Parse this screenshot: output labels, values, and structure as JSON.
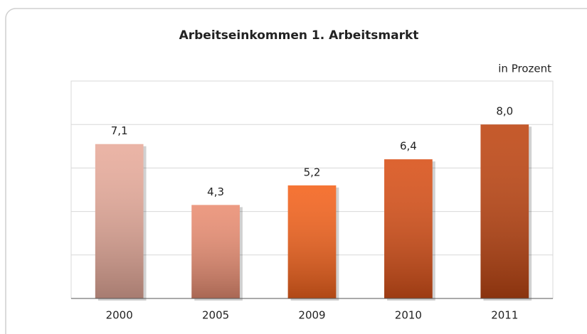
{
  "chart_data": {
    "type": "bar",
    "title": "Arbeitseinkommen 1. Arbeitsmarkt",
    "subtitle": "in Prozent",
    "categories": [
      "2000",
      "2005",
      "2009",
      "2010",
      "2011"
    ],
    "values": [
      7.1,
      4.3,
      5.2,
      6.4,
      8.0
    ],
    "value_labels": [
      "7,1",
      "4,3",
      "5,2",
      "6,4",
      "8,0"
    ],
    "colors": [
      "#e8ac9c",
      "#ea8f74",
      "#f4641e",
      "#d9521a",
      "#bf4714"
    ],
    "ylim": [
      0,
      10
    ],
    "yticks": [
      0,
      2,
      4,
      6,
      8,
      10
    ],
    "grid": true
  }
}
